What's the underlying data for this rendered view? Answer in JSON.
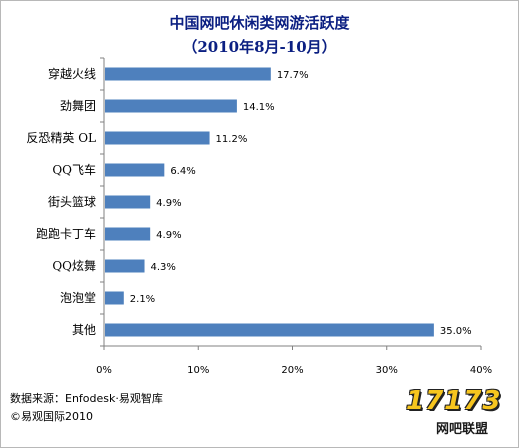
{
  "chart_data": {
    "type": "bar",
    "orientation": "horizontal",
    "title": "中国网吧休闲类网游活跃度",
    "subtitle": "（2010年8月-10月）",
    "categories": [
      "穿越火线",
      "劲舞团",
      "反恐精英 OL",
      "QQ飞车",
      "街头篮球",
      "跑跑卡丁车",
      "QQ炫舞",
      "泡泡堂",
      "其他"
    ],
    "values": [
      17.7,
      14.1,
      11.2,
      6.4,
      4.9,
      4.9,
      4.3,
      2.1,
      35.0
    ],
    "value_labels": [
      "17.7%",
      "14.1%",
      "11.2%",
      "6.4%",
      "4.9%",
      "4.9%",
      "4.3%",
      "2.1%",
      "35.0%"
    ],
    "xlim": [
      0,
      40
    ],
    "xticks": [
      0,
      10,
      20,
      30,
      40
    ],
    "xtick_labels": [
      "0%",
      "10%",
      "20%",
      "30%",
      "40%"
    ],
    "bar_color": "#4e80bd",
    "title_color": "#0b1f82",
    "grid": false,
    "legend": "none"
  },
  "footer": {
    "source": "数据来源：Enfodesk·易观智库",
    "copyright": "©易观国际2010"
  },
  "logo": {
    "digits": "17173",
    "text": "网吧联盟"
  }
}
